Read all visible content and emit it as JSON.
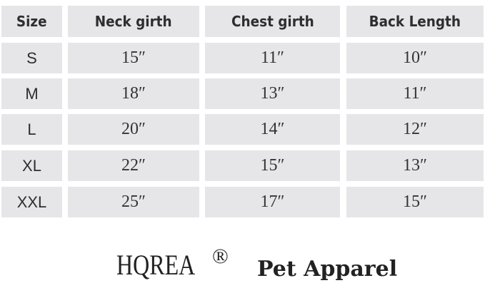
{
  "table": {
    "headers": [
      "Size",
      "Neck girth",
      "Chest girth",
      "Back Length"
    ],
    "rows": [
      [
        "S",
        "15″",
        "11″",
        "10″"
      ],
      [
        "M",
        "18″",
        "13″",
        "11″"
      ],
      [
        "L",
        "20″",
        "14″",
        "12″"
      ],
      [
        "XL",
        "22″",
        "15″",
        "13″"
      ],
      [
        "XXL",
        "25″",
        "17″",
        "15″"
      ]
    ]
  },
  "footer": {
    "brand": "HQREA",
    "registered": "®",
    "tagline": "Pet Apparel"
  }
}
